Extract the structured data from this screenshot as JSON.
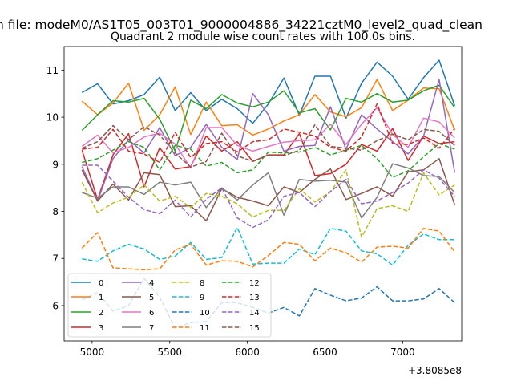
{
  "chart_data": {
    "type": "line",
    "suptitle": "n file: modeM0/AS1T05_003T01_9000004886_34221cztM0_level2_quad_clean",
    "title": "Quadrant 2 module wise count rates with 100.0s bins.",
    "xlabel": "",
    "ylabel": "",
    "offset_label": "+3.8085e8",
    "xlim": [
      4820,
      7380
    ],
    "ylim": [
      5.25,
      11.5
    ],
    "xticks": [
      5000,
      5500,
      6000,
      6500,
      7000
    ],
    "yticks": [
      6,
      7,
      8,
      9,
      10,
      11
    ],
    "x": [
      4935,
      5035,
      5135,
      5235,
      5335,
      5435,
      5535,
      5635,
      5735,
      5835,
      5935,
      6035,
      6135,
      6235,
      6335,
      6435,
      6535,
      6635,
      6735,
      6835,
      6935,
      7035,
      7135,
      7235,
      7335
    ],
    "legend_position": "lower-left",
    "grid": false,
    "series": [
      {
        "name": "0",
        "color": "#1f77b4",
        "dash": "solid",
        "values": [
          10.52,
          10.71,
          10.28,
          10.35,
          10.48,
          10.85,
          10.14,
          10.52,
          10.14,
          10.38,
          10.18,
          9.87,
          10.28,
          10.83,
          10.04,
          10.87,
          10.87,
          9.98,
          10.72,
          11.17,
          10.87,
          10.38,
          10.84,
          11.21,
          10.24
        ]
      },
      {
        "name": "1",
        "color": "#ff7f0e",
        "dash": "solid",
        "values": [
          10.34,
          10.05,
          10.3,
          10.72,
          9.72,
          10.05,
          10.64,
          9.63,
          10.32,
          9.82,
          9.84,
          9.62,
          9.75,
          9.92,
          10.05,
          10.48,
          10.11,
          10.01,
          10.2,
          10.8,
          10.14,
          10.36,
          10.62,
          10.6,
          9.72
        ]
      },
      {
        "name": "2",
        "color": "#2ca02c",
        "dash": "solid",
        "values": [
          9.72,
          10.05,
          10.35,
          10.32,
          10.4,
          9.96,
          9.28,
          10.36,
          10.18,
          10.48,
          10.3,
          10.22,
          10.32,
          10.56,
          10.09,
          10.18,
          9.73,
          10.4,
          10.32,
          10.5,
          10.32,
          10.36,
          10.56,
          10.68,
          10.2
        ]
      },
      {
        "name": "3",
        "color": "#d62728",
        "dash": "solid",
        "values": [
          9.3,
          8.25,
          9.2,
          9.65,
          8.52,
          9.35,
          8.9,
          8.95,
          9.6,
          9.28,
          9.48,
          9.06,
          9.2,
          9.2,
          9.65,
          8.76,
          8.8,
          9.0,
          9.42,
          9.28,
          9.76,
          9.08,
          9.6,
          9.44,
          9.48
        ]
      },
      {
        "name": "4",
        "color": "#9467bd",
        "dash": "solid",
        "values": [
          8.95,
          8.22,
          9.12,
          9.52,
          9.24,
          9.78,
          9.18,
          9.36,
          9.85,
          9.36,
          9.1,
          10.5,
          10.05,
          9.28,
          9.38,
          9.4,
          10.22,
          9.32,
          10.05,
          9.75,
          9.48,
          9.22,
          9.6,
          10.8,
          8.82
        ]
      },
      {
        "name": "5",
        "color": "#8c564b",
        "dash": "solid",
        "values": [
          8.88,
          8.22,
          8.58,
          8.24,
          8.82,
          8.78,
          8.1,
          8.12,
          7.8,
          8.48,
          8.3,
          8.22,
          8.12,
          8.52,
          8.4,
          8.68,
          8.9,
          8.25,
          8.38,
          8.52,
          8.32,
          8.84,
          8.88,
          9.12,
          8.14
        ]
      },
      {
        "name": "6",
        "color": "#e377c2",
        "dash": "solid",
        "values": [
          9.38,
          9.62,
          9.24,
          9.36,
          9.58,
          9.66,
          9.43,
          8.92,
          9.78,
          9.78,
          9.4,
          9.28,
          9.38,
          9.47,
          9.5,
          9.52,
          9.85,
          9.42,
          9.85,
          10.2,
          9.63,
          9.36,
          9.98,
          9.9,
          9.56
        ]
      },
      {
        "name": "7",
        "color": "#7f7f7f",
        "dash": "solid",
        "values": [
          8.4,
          8.28,
          8.52,
          8.52,
          8.36,
          8.62,
          8.56,
          8.62,
          8.08,
          8.5,
          8.24,
          8.56,
          8.82,
          7.92,
          8.68,
          8.64,
          8.66,
          8.62,
          7.86,
          8.3,
          9.01,
          8.92,
          8.76,
          8.74,
          8.4
        ]
      },
      {
        "name": "8",
        "color": "#bcbd22",
        "dash": "dashed",
        "values": [
          8.62,
          7.97,
          8.18,
          8.3,
          8.56,
          8.22,
          8.32,
          8.08,
          8.38,
          8.32,
          8.16,
          7.88,
          8.02,
          8.02,
          8.48,
          8.2,
          8.42,
          8.88,
          7.45,
          8.06,
          8.12,
          8.0,
          8.82,
          8.35,
          8.56
        ]
      },
      {
        "name": "9",
        "color": "#17becf",
        "dash": "dashed",
        "values": [
          6.99,
          6.94,
          7.16,
          7.3,
          7.2,
          6.98,
          7.05,
          7.34,
          6.98,
          7.02,
          7.66,
          6.88,
          6.9,
          6.9,
          7.2,
          7.08,
          7.64,
          7.58,
          7.16,
          7.1,
          6.86,
          7.28,
          7.52,
          7.4,
          7.4
        ]
      },
      {
        "name": "10",
        "color": "#1f77b4",
        "dash": "dashed",
        "values": [
          6.12,
          6.28,
          5.88,
          6.0,
          6.58,
          6.18,
          5.52,
          5.64,
          5.66,
          6.06,
          6.06,
          5.96,
          5.84,
          5.96,
          5.78,
          6.36,
          6.22,
          6.1,
          6.16,
          6.4,
          6.1,
          6.1,
          6.14,
          6.36,
          6.06
        ]
      },
      {
        "name": "11",
        "color": "#ff7f0e",
        "dash": "dashed",
        "values": [
          7.22,
          7.55,
          6.8,
          6.78,
          6.76,
          6.78,
          7.18,
          7.3,
          6.86,
          6.95,
          6.94,
          6.82,
          7.06,
          7.34,
          7.3,
          6.95,
          7.22,
          7.12,
          6.92,
          7.24,
          7.26,
          7.22,
          7.64,
          7.58,
          7.14
        ]
      },
      {
        "name": "12",
        "color": "#2ca02c",
        "dash": "dashed",
        "values": [
          9.04,
          9.12,
          9.3,
          9.48,
          9.36,
          8.88,
          9.4,
          9.32,
          8.96,
          9.04,
          8.82,
          8.88,
          9.26,
          9.24,
          9.26,
          9.36,
          9.2,
          9.3,
          9.4,
          9.12,
          8.72,
          8.86,
          9.16,
          9.44,
          9.32
        ]
      },
      {
        "name": "13",
        "color": "#d62728",
        "dash": "dashed",
        "values": [
          9.32,
          9.36,
          9.74,
          9.28,
          9.22,
          9.04,
          9.68,
          9.14,
          9.44,
          9.48,
          9.26,
          9.48,
          9.52,
          9.75,
          9.68,
          9.6,
          9.36,
          9.28,
          9.58,
          10.28,
          9.44,
          9.42,
          9.56,
          9.34,
          9.76
        ]
      },
      {
        "name": "14",
        "color": "#9467bd",
        "dash": "dashed",
        "values": [
          8.98,
          8.98,
          8.64,
          8.3,
          8.04,
          7.95,
          8.24,
          7.88,
          8.26,
          8.5,
          7.86,
          7.66,
          7.82,
          8.32,
          8.4,
          8.1,
          8.42,
          8.68,
          8.16,
          8.22,
          8.4,
          8.6,
          8.88,
          8.7,
          8.32
        ]
      },
      {
        "name": "15",
        "color": "#8c564b",
        "dash": "dashed",
        "values": [
          9.34,
          9.48,
          9.82,
          9.52,
          9.8,
          9.62,
          9.24,
          8.94,
          9.06,
          9.66,
          9.18,
          9.06,
          9.2,
          9.18,
          9.3,
          9.84,
          9.38,
          9.34,
          9.3,
          9.5,
          9.64,
          9.52,
          9.74,
          9.7,
          9.4
        ]
      }
    ]
  }
}
